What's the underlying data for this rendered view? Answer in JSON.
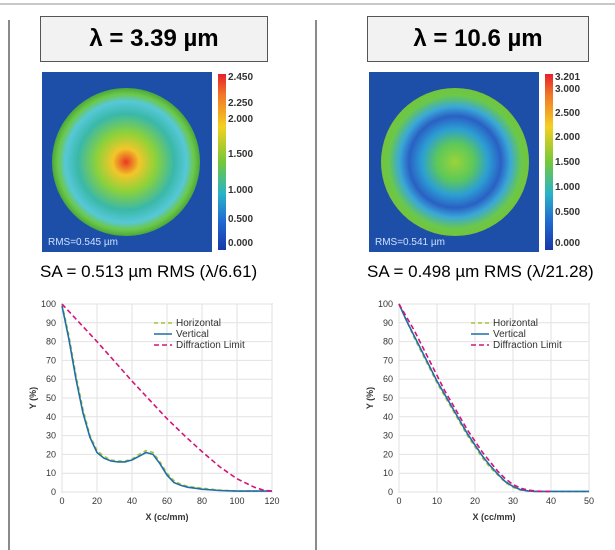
{
  "panels": [
    {
      "title": "λ = 3.39 µm",
      "map_rms": "RMS=0.545 µm",
      "colorbar_ticks": [
        "2.450",
        "2.250",
        "2.000",
        "1.500",
        "1.000",
        "0.500",
        "0.000"
      ],
      "sa_text": "SA = 0.513 µm RMS (λ/6.61)"
    },
    {
      "title": "λ = 10.6 µm",
      "map_rms": "RMS=0.541 µm",
      "colorbar_ticks": [
        "3.201",
        "3.000",
        "2.500",
        "2.000",
        "1.500",
        "1.000",
        "0.500",
        "0.000"
      ],
      "sa_text": "SA = 0.498 µm RMS (λ/21.28)"
    }
  ],
  "colors": {
    "horizontal": "#a6c43a",
    "vertical": "#1f6ea8",
    "diffraction": "#d4147a"
  },
  "chart_data": [
    {
      "type": "line",
      "xlabel": "X (cc/mm)",
      "ylabel": "Y (%)",
      "xlim": [
        0,
        120
      ],
      "ylim": [
        0,
        100
      ],
      "xticks": [
        0,
        20,
        40,
        60,
        80,
        100,
        120
      ],
      "yticks": [
        0,
        10,
        20,
        30,
        40,
        50,
        60,
        70,
        80,
        90,
        100
      ],
      "legend_position": "top-right",
      "series": [
        {
          "name": "Horizontal",
          "style": "dashed",
          "x": [
            0,
            4,
            8,
            12,
            16,
            20,
            24,
            28,
            32,
            36,
            40,
            44,
            48,
            52,
            56,
            60,
            64,
            68,
            72,
            76,
            80,
            90,
            100,
            110,
            120
          ],
          "y": [
            100,
            83,
            62,
            44,
            30,
            22,
            19,
            17,
            16.5,
            16.5,
            17.5,
            20,
            22,
            21,
            16,
            10,
            6,
            4,
            3,
            2.5,
            2,
            1,
            0.5,
            0.5,
            0.5
          ]
        },
        {
          "name": "Vertical",
          "style": "solid",
          "x": [
            0,
            4,
            8,
            12,
            16,
            20,
            24,
            28,
            32,
            36,
            40,
            44,
            48,
            52,
            56,
            60,
            64,
            68,
            72,
            76,
            80,
            90,
            100,
            110,
            120
          ],
          "y": [
            99,
            81,
            60,
            42,
            29,
            21,
            18,
            16.5,
            16,
            16,
            17,
            19,
            21,
            20,
            15,
            9,
            5,
            3.5,
            2.5,
            2,
            1.5,
            0.8,
            0.5,
            0.5,
            0.5
          ]
        },
        {
          "name": "Diffraction Limit",
          "style": "dashed",
          "x": [
            0,
            10,
            20,
            30,
            40,
            50,
            60,
            70,
            80,
            90,
            100,
            110,
            115,
            120
          ],
          "y": [
            100,
            90,
            80,
            69.5,
            59,
            49,
            39,
            30,
            21.5,
            13.5,
            7,
            2.5,
            1,
            0.5
          ]
        }
      ]
    },
    {
      "type": "line",
      "xlabel": "X (cc/mm)",
      "ylabel": "Y (%)",
      "xlim": [
        0,
        50
      ],
      "ylim": [
        0,
        100
      ],
      "xticks": [
        0,
        10,
        20,
        30,
        40,
        50
      ],
      "yticks": [
        0,
        10,
        20,
        30,
        40,
        50,
        60,
        70,
        80,
        90,
        100
      ],
      "legend_position": "top-right",
      "series": [
        {
          "name": "Horizontal",
          "style": "dashed",
          "x": [
            0,
            2,
            4,
            6,
            8,
            10,
            12,
            14,
            16,
            18,
            20,
            22,
            24,
            26,
            28,
            30,
            32,
            34,
            36,
            40,
            45,
            50
          ],
          "y": [
            100,
            91,
            82,
            74,
            66,
            58,
            51,
            44,
            37,
            30,
            24,
            18,
            13,
            9,
            5,
            2.5,
            1,
            0.5,
            0.3,
            0.3,
            0.3,
            0.3
          ]
        },
        {
          "name": "Vertical",
          "style": "solid",
          "x": [
            0,
            2,
            4,
            6,
            8,
            10,
            12,
            14,
            16,
            18,
            20,
            22,
            24,
            26,
            28,
            30,
            32,
            34,
            36,
            40,
            45,
            50
          ],
          "y": [
            100,
            91,
            83,
            75,
            67,
            59,
            52,
            45,
            38,
            31,
            25,
            19,
            14,
            9.5,
            5.5,
            3,
            1.2,
            0.6,
            0.3,
            0.3,
            0.3,
            0.3
          ]
        },
        {
          "name": "Diffraction Limit",
          "style": "dashed",
          "x": [
            0,
            2,
            4,
            6,
            8,
            10,
            12,
            14,
            16,
            18,
            20,
            22,
            24,
            26,
            28,
            30,
            32,
            34,
            36,
            38,
            40
          ],
          "y": [
            100,
            93,
            86,
            78,
            70,
            62,
            54,
            47,
            40,
            33,
            27,
            21,
            16,
            11,
            7,
            4,
            2,
            1,
            0.5,
            0.3,
            0.3
          ]
        }
      ]
    }
  ]
}
